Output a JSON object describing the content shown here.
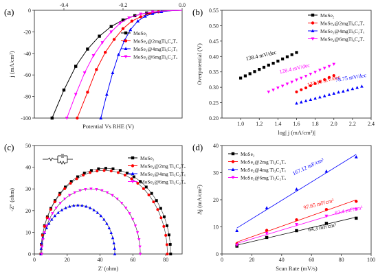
{
  "chart_data": [
    {
      "id": "a",
      "type": "line",
      "panel_label": "(a)",
      "xlabel": "Potential Vs RHE (V)",
      "ylabel": "j (mA/cm²)",
      "xlim": [
        -0.5,
        0.0
      ],
      "ylim": [
        -100,
        0
      ],
      "xticks": [
        "-0.4",
        "-0.2",
        "0.0"
      ],
      "yticks": [
        "0",
        "-20",
        "-40",
        "-60",
        "-80",
        "-100"
      ],
      "legend_position": "inside-right",
      "series": [
        {
          "name": "MoSe₂",
          "color": "#000000",
          "marker": "square",
          "points": [
            [
              -0.44,
              -100
            ],
            [
              -0.4,
              -74
            ],
            [
              -0.36,
              -52
            ],
            [
              -0.32,
              -36
            ],
            [
              -0.28,
              -24
            ],
            [
              -0.24,
              -15
            ],
            [
              -0.2,
              -9
            ],
            [
              -0.16,
              -5
            ],
            [
              -0.12,
              -2.5
            ],
            [
              -0.08,
              -1
            ],
            [
              -0.04,
              -0.3
            ],
            [
              0,
              0
            ]
          ]
        },
        {
          "name": "MoSe₂@2mgTi₃C₂Tₓ",
          "color": "#ff0000",
          "marker": "circle",
          "points": [
            [
              -0.355,
              -100
            ],
            [
              -0.32,
              -76
            ],
            [
              -0.29,
              -55
            ],
            [
              -0.26,
              -39
            ],
            [
              -0.23,
              -27
            ],
            [
              -0.2,
              -17
            ],
            [
              -0.17,
              -10
            ],
            [
              -0.14,
              -6
            ],
            [
              -0.11,
              -3
            ],
            [
              -0.08,
              -1.5
            ],
            [
              -0.04,
              -0.4
            ],
            [
              0,
              0
            ]
          ]
        },
        {
          "name": "MoSe₂@4mgTi₃C₂Tₓ",
          "color": "#0000ff",
          "marker": "triangle",
          "points": [
            [
              -0.275,
              -100
            ],
            [
              -0.255,
              -78
            ],
            [
              -0.235,
              -58
            ],
            [
              -0.215,
              -41
            ],
            [
              -0.195,
              -28
            ],
            [
              -0.175,
              -18
            ],
            [
              -0.15,
              -10
            ],
            [
              -0.125,
              -5.5
            ],
            [
              -0.1,
              -3
            ],
            [
              -0.07,
              -1.3
            ],
            [
              -0.035,
              -0.3
            ],
            [
              0,
              0
            ]
          ]
        },
        {
          "name": "MoSe₂@6mgTi₃C₂Tₓ",
          "color": "#ff00ff",
          "marker": "triangle-down",
          "points": [
            [
              -0.39,
              -100
            ],
            [
              -0.36,
              -78
            ],
            [
              -0.33,
              -58
            ],
            [
              -0.3,
              -42
            ],
            [
              -0.27,
              -30
            ],
            [
              -0.24,
              -20
            ],
            [
              -0.21,
              -12
            ],
            [
              -0.18,
              -7
            ],
            [
              -0.14,
              -3.5
            ],
            [
              -0.1,
              -1.5
            ],
            [
              -0.05,
              -0.4
            ],
            [
              0,
              0
            ]
          ]
        }
      ]
    },
    {
      "id": "b",
      "type": "scatter",
      "panel_label": "(b)",
      "xlabel": "log| j (mA/cm²)|",
      "ylabel": "Overpotential (V)",
      "xlim": [
        0.8,
        2.4
      ],
      "ylim": [
        0.2,
        0.55
      ],
      "xticks": [
        "1.0",
        "1.2",
        "1.4",
        "1.6",
        "1.8",
        "2.0",
        "2.2",
        "2.4"
      ],
      "yticks": [
        "0.20",
        "0.25",
        "0.30",
        "0.35",
        "0.40",
        "0.45",
        "0.50",
        "0.55"
      ],
      "legend_position": "top-right",
      "series": [
        {
          "name": "MoSe₂",
          "color": "#000000",
          "marker": "square",
          "annotation": "138.4 mV/dec",
          "x": [
            1.0,
            1.05,
            1.1,
            1.15,
            1.2,
            1.25,
            1.3,
            1.35,
            1.4,
            1.45,
            1.5,
            1.55,
            1.6
          ],
          "y": [
            0.33,
            0.337,
            0.344,
            0.351,
            0.358,
            0.365,
            0.372,
            0.378,
            0.385,
            0.392,
            0.399,
            0.406,
            0.413
          ]
        },
        {
          "name": "MoSe₂@2mgTi₃C₂Tₓ",
          "color": "#ff0000",
          "marker": "circle",
          "annotation": "133.18 mV/dec",
          "x": [
            1.6,
            1.65,
            1.7,
            1.75,
            1.8,
            1.85,
            1.9,
            1.95,
            2.0
          ],
          "y": [
            0.285,
            0.292,
            0.298,
            0.305,
            0.312,
            0.318,
            0.325,
            0.332,
            0.338
          ]
        },
        {
          "name": "MoSe₂@4mgTi₃C₂Tₓ",
          "color": "#0000ff",
          "marker": "triangle",
          "annotation": "78.75 mV/dec",
          "x": [
            1.6,
            1.65,
            1.7,
            1.75,
            1.8,
            1.85,
            1.9,
            1.95,
            2.0,
            2.05,
            2.1,
            2.15,
            2.2,
            2.25,
            2.3
          ],
          "y": [
            0.248,
            0.252,
            0.256,
            0.26,
            0.264,
            0.268,
            0.272,
            0.276,
            0.28,
            0.284,
            0.287,
            0.291,
            0.295,
            0.299,
            0.303
          ]
        },
        {
          "name": "MoSe₂@6mgTi₃C₂Tₓ",
          "color": "#ff00ff",
          "marker": "triangle-down",
          "annotation": "128.4 mV/dec",
          "x": [
            1.3,
            1.35,
            1.4,
            1.45,
            1.5,
            1.55,
            1.6,
            1.65,
            1.7,
            1.75,
            1.8,
            1.85,
            1.9,
            1.95,
            2.0
          ],
          "y": [
            0.285,
            0.291,
            0.298,
            0.304,
            0.311,
            0.317,
            0.324,
            0.33,
            0.336,
            0.343,
            0.349,
            0.356,
            0.362,
            0.368,
            0.375
          ]
        }
      ]
    },
    {
      "id": "c",
      "type": "scatter",
      "panel_label": "(c)",
      "xlabel": "Z' (ohm)",
      "ylabel": "-Z'' (ohm)",
      "xlim": [
        0,
        90
      ],
      "ylim": [
        0,
        50
      ],
      "xticks": [
        "0",
        "20",
        "40",
        "60",
        "80"
      ],
      "yticks": [
        "0",
        "10",
        "20",
        "30",
        "40",
        "50"
      ],
      "legend_position": "top-right",
      "has_circuit_inset": true,
      "series": [
        {
          "name": "MoSe₂",
          "color": "#000000",
          "marker": "square",
          "center": 43.5,
          "radius": 39.5
        },
        {
          "name": "MoSe₂@2mg Ti₃C₂Tₓ",
          "color": "#ff0000",
          "marker": "circle",
          "center": 42.5,
          "radius": 38.5
        },
        {
          "name": "MoSe₂@4mg Ti₃C₂Tₓ",
          "color": "#0000ff",
          "marker": "triangle",
          "center": 26.5,
          "radius": 22.5
        },
        {
          "name": "MoSe₂@6mg Ti₃C₂Tₓ",
          "color": "#ff00ff",
          "marker": "triangle-down",
          "center": 34.5,
          "radius": 30.0
        }
      ]
    },
    {
      "id": "d",
      "type": "scatter",
      "panel_label": "(d)",
      "xlabel": "Scan Rate (mV/s)",
      "ylabel": "Δj (mA/cm²)",
      "xlim": [
        0,
        100
      ],
      "ylim": [
        0,
        40
      ],
      "xticks": [
        "0",
        "20",
        "40",
        "60",
        "80",
        "100"
      ],
      "yticks": [
        "0",
        "10",
        "20",
        "30",
        "40"
      ],
      "legend_position": "top-left",
      "series": [
        {
          "name": "MoSe₂",
          "color": "#000000",
          "marker": "square",
          "annotation": "64.3 mF/cm²",
          "x": [
            10,
            30,
            50,
            70,
            90
          ],
          "y": [
            2.9,
            6.1,
            8.6,
            11.3,
            13.2
          ]
        },
        {
          "name": "MoSe₂@2mg Ti₃C₂Tₓ",
          "color": "#ff0000",
          "marker": "circle",
          "annotation": "97.65 mF/cm²",
          "x": [
            10,
            30,
            50,
            70,
            90
          ],
          "y": [
            3.8,
            8.7,
            12.6,
            16.4,
            19.4
          ]
        },
        {
          "name": "MoSe₂@4mg Ti₃C₂Tₓ",
          "color": "#0000ff",
          "marker": "triangle",
          "annotation": "167.12 mF/cm²",
          "x": [
            10,
            30,
            50,
            70,
            90
          ],
          "y": [
            8.6,
            17.0,
            23.9,
            30.5,
            35.8
          ]
        },
        {
          "name": "MoSe₂@6mg Ti₃C₂Tₓ",
          "color": "#ff00ff",
          "marker": "triangle-down",
          "annotation": "82.4 mF/cm²",
          "x": [
            10,
            30,
            50,
            70,
            90
          ],
          "y": [
            3.3,
            7.6,
            10.9,
            14.0,
            16.6
          ]
        }
      ]
    }
  ]
}
